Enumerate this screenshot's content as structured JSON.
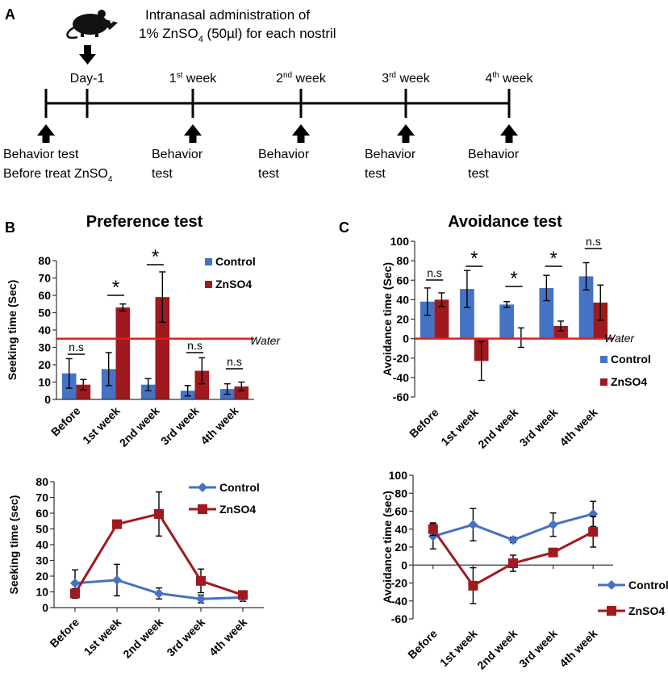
{
  "panel_a": {
    "letter": "A",
    "admin_line1": "Intranasal administration of",
    "admin_line2_pre": "1% ZnSO",
    "admin_line2_sub": "4",
    "admin_line2_post": " (50µl) for each nostril",
    "timepoints": [
      {
        "pre": "Day-1",
        "sup": "",
        "post": ""
      },
      {
        "pre": "1",
        "sup": "st",
        "post": " week"
      },
      {
        "pre": "2",
        "sup": "nd",
        "post": " week"
      },
      {
        "pre": "3",
        "sup": "rd",
        "post": " week"
      },
      {
        "pre": "4",
        "sup": "th",
        "post": " week"
      }
    ],
    "behavior_labels": [
      {
        "line1": "Behavior test",
        "line2_pre": "Before treat ZnSO",
        "line2_sub": "4"
      },
      {
        "line1": "Behavior",
        "line2_pre": "test",
        "line2_sub": ""
      },
      {
        "line1": "Behavior",
        "line2_pre": "test",
        "line2_sub": ""
      },
      {
        "line1": "Behavior",
        "line2_pre": "test",
        "line2_sub": ""
      },
      {
        "line1": "Behavior",
        "line2_pre": "test",
        "line2_sub": ""
      }
    ]
  },
  "colors": {
    "control": "#4472c4",
    "znso4": "#a0191e",
    "water": "#e02020",
    "axis": "#000000"
  },
  "panel_b_letter": "B",
  "panel_c_letter": "C",
  "chart_data": [
    {
      "id": "preference_bar",
      "type": "bar",
      "title": "Preference test",
      "ylabel": "Seeking time (Sec)",
      "ylim": [
        0,
        80
      ],
      "yticks": [
        0,
        10,
        20,
        30,
        40,
        50,
        60,
        70,
        80
      ],
      "categories": [
        "Before",
        "1st week",
        "2nd week",
        "3rd week",
        "4th week"
      ],
      "series": [
        {
          "name": "Control",
          "values": [
            15,
            17.5,
            8.5,
            5,
            6
          ],
          "errors": [
            8.5,
            9.5,
            3.5,
            3,
            3
          ]
        },
        {
          "name": "ZnSO4",
          "values": [
            8.5,
            53,
            59,
            16.5,
            7.5
          ],
          "errors": [
            3,
            2,
            14.5,
            7.5,
            2.5
          ]
        }
      ],
      "reference_line": {
        "value": 35,
        "label": "Water"
      },
      "annotations": [
        "n.s",
        "*",
        "*",
        "n.s",
        "n.s"
      ]
    },
    {
      "id": "avoidance_bar",
      "type": "bar",
      "title": "Avoidance test",
      "ylabel": "Avoidance time (Sec)",
      "ylim": [
        -60,
        100
      ],
      "yticks": [
        -60,
        -40,
        -20,
        0,
        20,
        40,
        60,
        80,
        100
      ],
      "categories": [
        "Before",
        "1st week",
        "2nd week",
        "3rd week",
        "4th week"
      ],
      "series": [
        {
          "name": "Control",
          "values": [
            38,
            51,
            35,
            52,
            64
          ],
          "errors": [
            14,
            19,
            3,
            13,
            14
          ]
        },
        {
          "name": "ZnSO4",
          "values": [
            40,
            -23,
            1,
            13,
            37
          ],
          "errors": [
            7,
            20,
            10,
            5,
            18
          ]
        }
      ],
      "reference_line": {
        "value": 0,
        "label": "Water"
      },
      "annotations": [
        "n.s",
        "*",
        "*",
        "*",
        "n.s"
      ]
    },
    {
      "id": "preference_line",
      "type": "line",
      "ylabel": "Seeking time (sec)",
      "ylim": [
        0,
        80
      ],
      "yticks": [
        0,
        10,
        20,
        30,
        40,
        50,
        60,
        70,
        80
      ],
      "categories": [
        "Before",
        "1st week",
        "2nd week",
        "3rd week",
        "4th week"
      ],
      "series": [
        {
          "name": "Control",
          "values": [
            15.5,
            17.5,
            9,
            5.5,
            6.5
          ],
          "errors": [
            8.5,
            10,
            3.5,
            2.5,
            2.5
          ]
        },
        {
          "name": "ZnSO4",
          "values": [
            9,
            53,
            59.5,
            17,
            8
          ],
          "errors": [
            3,
            2,
            14,
            7.5,
            2.5
          ]
        }
      ]
    },
    {
      "id": "avoidance_line",
      "type": "line",
      "ylabel": "Avoidance time (sec)",
      "ylim": [
        -60,
        100
      ],
      "yticks": [
        -60,
        -40,
        -20,
        0,
        20,
        40,
        60,
        80,
        100
      ],
      "categories": [
        "Before",
        "1st week",
        "2nd week",
        "3rd week",
        "4th week"
      ],
      "series": [
        {
          "name": "Control",
          "values": [
            32,
            45,
            28,
            45,
            57
          ],
          "errors": [
            14,
            18,
            3,
            13,
            14
          ]
        },
        {
          "name": "ZnSO4",
          "values": [
            40,
            -23,
            2,
            14,
            37
          ],
          "errors": [
            7,
            20,
            9,
            4,
            17
          ]
        }
      ]
    }
  ]
}
